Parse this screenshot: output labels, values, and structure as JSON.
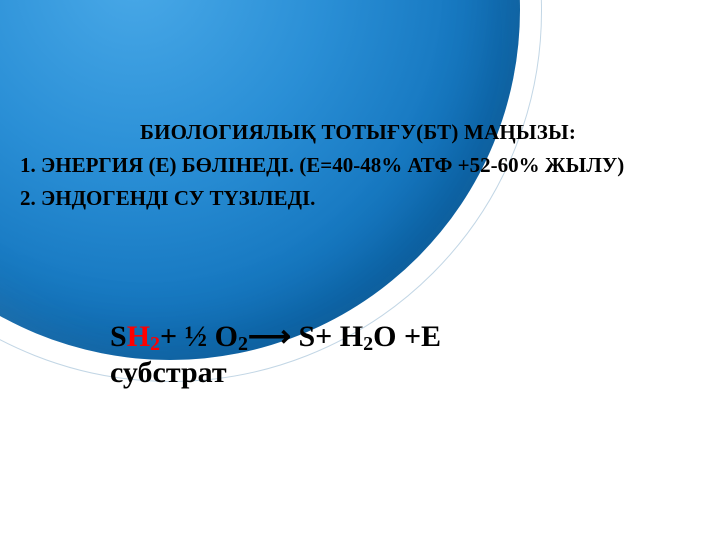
{
  "decor": {
    "circle_gradient_colors": [
      "#49a9e8",
      "#2a8fd6",
      "#0f6fb8",
      "#0a5a99"
    ],
    "arc_border_color": "rgba(10,90,153,0.25)"
  },
  "text": {
    "title": "БИОЛОГИЯЛЫҚ ТОТЫҒУ(БТ) МАҢЫЗЫ:",
    "line1": "1. ЭНЕРГИЯ (Е) БӨЛІНЕДІ. (Е=40-48% АТФ +52-60% ЖЫЛУ)",
    "line2": "2. ЭНДОГЕНДІ СУ  ТҮЗІЛЕДІ.",
    "equation": {
      "s": "S",
      "h": "H",
      "h_sub": "2",
      "plus1": "+ ½ O",
      "o_sub": "2",
      "arrow": "⟶",
      "tail": " S+ H",
      "h2o_sub": "2",
      "tail2": "O +E"
    },
    "substrate": "субстрат"
  },
  "style": {
    "title_fontsize": 21,
    "body_fontsize": 21,
    "equation_fontsize": 30,
    "red_color": "#ff0000",
    "text_color": "#000000",
    "background_color": "#ffffff",
    "font_family": "Times New Roman"
  }
}
